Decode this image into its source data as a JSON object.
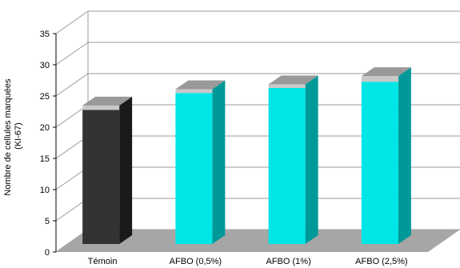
{
  "chart_data": {
    "type": "bar",
    "title": "",
    "xlabel": "",
    "ylabel": "Nombre de cellules marquées",
    "ylabel_line2": "(KI-67)",
    "categories": [
      "Témoin",
      "AFBO (0,5%)",
      "AFBO (1%)",
      "AFBO (2,5%)"
    ],
    "values": [
      21.5,
      24.2,
      25.0,
      26.0
    ],
    "error_caps": [
      0.7,
      0.6,
      0.6,
      0.9
    ],
    "ylim": [
      0,
      35
    ],
    "yticks": [
      "0",
      "5",
      "10",
      "15",
      "20",
      "25",
      "30",
      "35"
    ],
    "grid": true,
    "three_d": true,
    "colors": {
      "bar_fills": [
        "#333333",
        "#00e5e5",
        "#00e5e5",
        "#00e5e5"
      ],
      "bar_sides": [
        "#1a1a1a",
        "#009999",
        "#009999",
        "#009999"
      ],
      "cap_front": "#c8c8c8",
      "cap_top": "#999999",
      "floor": "#a6a6a6",
      "grid": "#999999"
    }
  }
}
